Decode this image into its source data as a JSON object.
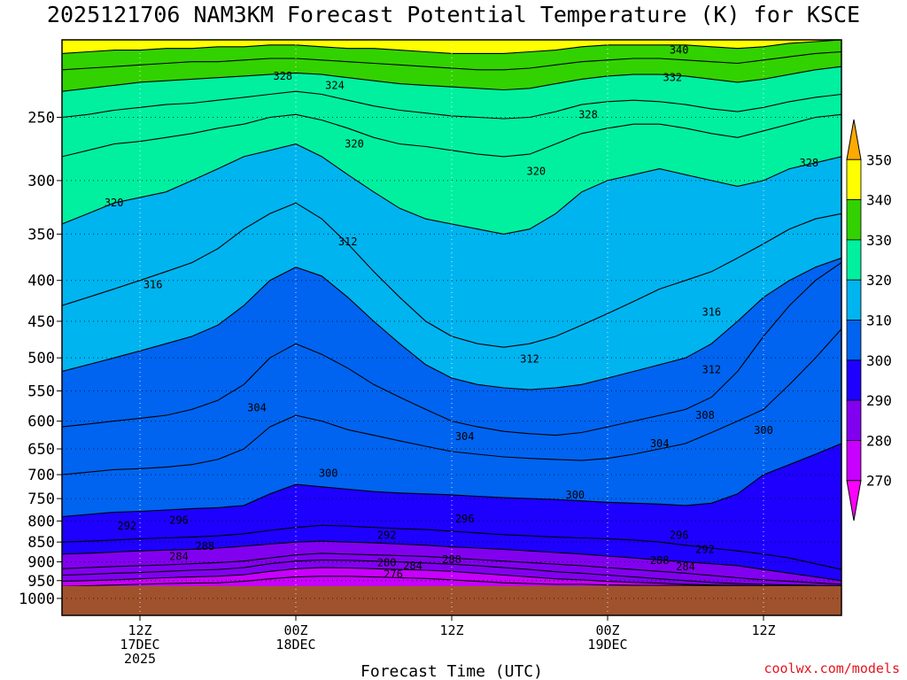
{
  "chart_data": {
    "type": "contour",
    "title": "2025121706 NAM3KM Forecast Potential Temperature (K) for KSCE",
    "xlabel": "Forecast Time (UTC)",
    "credit": "coolwx.com/models",
    "y_axis": {
      "label_unit": "hPa",
      "scale": "log",
      "range": [
        200,
        1050
      ],
      "ticks": [
        {
          "value": 250,
          "label": "250"
        },
        {
          "value": 300,
          "label": "300"
        },
        {
          "value": 350,
          "label": "350"
        },
        {
          "value": 400,
          "label": "400"
        },
        {
          "value": 450,
          "label": "450"
        },
        {
          "value": 500,
          "label": "500"
        },
        {
          "value": 550,
          "label": "550"
        },
        {
          "value": 600,
          "label": "600"
        },
        {
          "value": 650,
          "label": "650"
        },
        {
          "value": 700,
          "label": "700"
        },
        {
          "value": 750,
          "label": "750"
        },
        {
          "value": 800,
          "label": "800"
        },
        {
          "value": 850,
          "label": "850"
        },
        {
          "value": 900,
          "label": "900"
        },
        {
          "value": 950,
          "label": "950"
        },
        {
          "value": 1000,
          "label": "1000"
        }
      ]
    },
    "x_axis": {
      "unit": "forecast hour",
      "range": [
        0,
        60
      ],
      "ticks": [
        {
          "hour": 6,
          "lines": [
            "12Z",
            "17DEC",
            "2025"
          ]
        },
        {
          "hour": 18,
          "lines": [
            "00Z",
            "18DEC"
          ]
        },
        {
          "hour": 30,
          "lines": [
            "12Z"
          ]
        },
        {
          "hour": 42,
          "lines": [
            "00Z",
            "19DEC"
          ]
        },
        {
          "hour": 54,
          "lines": [
            "12Z"
          ]
        }
      ]
    },
    "colorbar": {
      "levels": [
        270,
        280,
        290,
        300,
        310,
        320,
        330,
        340,
        350
      ],
      "colors": [
        "#ff00ff",
        "#c800ff",
        "#8200f0",
        "#1e00ff",
        "#0064f0",
        "#00b4f0",
        "#00f0a0",
        "#32d200",
        "#ffff00",
        "#ffaa00"
      ],
      "labels": [
        "270",
        "280",
        "290",
        "300",
        "310",
        "320",
        "330",
        "340",
        "350"
      ]
    },
    "ground_color": "#a0522d",
    "ground_pressure_hpa": 965,
    "contour_interval_K": 4,
    "isentropes": [
      {
        "theta": 276,
        "p": [
          966,
          964,
          962,
          960,
          958,
          957,
          956,
          952,
          945,
          940,
          938,
          938,
          940,
          942,
          944,
          948,
          952,
          956,
          958,
          960,
          960,
          962,
          963,
          963,
          963,
          964,
          965,
          965,
          965,
          965,
          965
        ]
      },
      {
        "theta": 280,
        "p": [
          952,
          950,
          948,
          945,
          942,
          940,
          938,
          934,
          925,
          918,
          915,
          916,
          918,
          920,
          922,
          925,
          930,
          935,
          940,
          945,
          948,
          952,
          955,
          957,
          960,
          962,
          963,
          964,
          965,
          965,
          965
        ]
      },
      {
        "theta": 284,
        "p": [
          935,
          933,
          930,
          928,
          925,
          922,
          920,
          915,
          905,
          898,
          895,
          896,
          898,
          900,
          903,
          906,
          910,
          915,
          920,
          926,
          930,
          935,
          940,
          945,
          950,
          955,
          958,
          960,
          962,
          963,
          964
        ]
      },
      {
        "theta": 288,
        "p": [
          918,
          915,
          912,
          910,
          908,
          905,
          902,
          898,
          890,
          882,
          878,
          880,
          882,
          884,
          886,
          890,
          894,
          898,
          902,
          906,
          910,
          915,
          920,
          925,
          930,
          936,
          942,
          948,
          952,
          956,
          960
        ]
      },
      {
        "theta": 292,
        "p": [
          880,
          878,
          875,
          872,
          870,
          868,
          865,
          860,
          855,
          850,
          848,
          850,
          852,
          855,
          858,
          862,
          865,
          868,
          872,
          876,
          880,
          885,
          890,
          895,
          900,
          905,
          910,
          920,
          930,
          940,
          950
        ]
      },
      {
        "theta": 296,
        "p": [
          850,
          848,
          845,
          842,
          840,
          838,
          835,
          830,
          822,
          815,
          810,
          812,
          815,
          818,
          820,
          824,
          828,
          832,
          835,
          838,
          840,
          842,
          845,
          850,
          858,
          865,
          872,
          880,
          890,
          905,
          920
        ]
      },
      {
        "theta": 300,
        "p": [
          790,
          785,
          780,
          778,
          775,
          772,
          770,
          765,
          740,
          720,
          725,
          730,
          735,
          738,
          740,
          742,
          745,
          748,
          750,
          752,
          755,
          758,
          760,
          762,
          765,
          760,
          740,
          700,
          680,
          660,
          640
        ]
      },
      {
        "theta": 304,
        "p": [
          700,
          695,
          690,
          688,
          685,
          680,
          670,
          650,
          610,
          590,
          600,
          615,
          625,
          635,
          645,
          655,
          660,
          665,
          668,
          670,
          672,
          668,
          660,
          650,
          640,
          620,
          600,
          580,
          540,
          500,
          460
        ]
      },
      {
        "theta": 308,
        "p": [
          610,
          605,
          600,
          595,
          590,
          580,
          565,
          540,
          500,
          480,
          495,
          515,
          540,
          560,
          580,
          600,
          610,
          618,
          622,
          625,
          620,
          610,
          600,
          590,
          580,
          560,
          520,
          470,
          430,
          400,
          380
        ]
      },
      {
        "theta": 312,
        "p": [
          520,
          510,
          500,
          490,
          480,
          470,
          455,
          430,
          400,
          385,
          395,
          420,
          450,
          480,
          510,
          530,
          540,
          545,
          548,
          545,
          540,
          530,
          520,
          510,
          500,
          480,
          450,
          420,
          400,
          385,
          375
        ]
      },
      {
        "theta": 316,
        "p": [
          430,
          420,
          410,
          400,
          390,
          380,
          365,
          345,
          330,
          320,
          335,
          360,
          390,
          420,
          450,
          470,
          480,
          485,
          480,
          470,
          455,
          440,
          425,
          410,
          400,
          390,
          375,
          360,
          345,
          335,
          330
        ]
      },
      {
        "theta": 320,
        "p": [
          340,
          330,
          320,
          315,
          310,
          300,
          290,
          280,
          275,
          270,
          280,
          295,
          310,
          325,
          335,
          340,
          345,
          350,
          345,
          330,
          310,
          300,
          295,
          290,
          295,
          300,
          305,
          300,
          290,
          285,
          280
        ]
      },
      {
        "theta": 324,
        "p": [
          280,
          275,
          270,
          268,
          265,
          262,
          258,
          255,
          250,
          248,
          252,
          258,
          265,
          270,
          272,
          275,
          278,
          280,
          278,
          270,
          262,
          258,
          255,
          255,
          258,
          262,
          265,
          260,
          255,
          250,
          248
        ]
      },
      {
        "theta": 328,
        "p": [
          250,
          248,
          245,
          243,
          241,
          240,
          238,
          236,
          234,
          232,
          234,
          238,
          242,
          245,
          247,
          249,
          250,
          251,
          250,
          246,
          241,
          239,
          238,
          239,
          241,
          244,
          246,
          243,
          239,
          236,
          234
        ]
      },
      {
        "theta": 332,
        "p": [
          232,
          230,
          228,
          226,
          225,
          224,
          223,
          222,
          221,
          220,
          221,
          223,
          225,
          227,
          228,
          229,
          230,
          231,
          230,
          227,
          224,
          222,
          221,
          221,
          222,
          224,
          226,
          224,
          221,
          218,
          216
        ]
      },
      {
        "theta": 336,
        "p": [
          218,
          217,
          216,
          215,
          214,
          213,
          213,
          212,
          211,
          211,
          212,
          213,
          214,
          215,
          216,
          217,
          218,
          218,
          217,
          215,
          213,
          212,
          211,
          211,
          212,
          213,
          214,
          212,
          210,
          208,
          207
        ]
      },
      {
        "theta": 340,
        "p": [
          208,
          207,
          206,
          206,
          205,
          205,
          204,
          204,
          203,
          203,
          204,
          205,
          205,
          206,
          207,
          208,
          208,
          208,
          207,
          206,
          204,
          203,
          203,
          203,
          203,
          204,
          205,
          204,
          202,
          201,
          200
        ]
      }
    ],
    "contour_labels": [
      {
        "text": "340",
        "hour": 47.5,
        "p": 206
      },
      {
        "text": "332",
        "hour": 47,
        "p": 223
      },
      {
        "text": "328",
        "hour": 17,
        "p": 222
      },
      {
        "text": "324",
        "hour": 21,
        "p": 228
      },
      {
        "text": "328",
        "hour": 40.5,
        "p": 248
      },
      {
        "text": "328",
        "hour": 57.5,
        "p": 285
      },
      {
        "text": "320",
        "hour": 22.5,
        "p": 270
      },
      {
        "text": "320",
        "hour": 36.5,
        "p": 292
      },
      {
        "text": "320",
        "hour": 4,
        "p": 320
      },
      {
        "text": "312",
        "hour": 22,
        "p": 358
      },
      {
        "text": "316",
        "hour": 7,
        "p": 405
      },
      {
        "text": "316",
        "hour": 50,
        "p": 438
      },
      {
        "text": "312",
        "hour": 36,
        "p": 502
      },
      {
        "text": "312",
        "hour": 50,
        "p": 517
      },
      {
        "text": "304",
        "hour": 15,
        "p": 577
      },
      {
        "text": "308",
        "hour": 49.5,
        "p": 590
      },
      {
        "text": "300",
        "hour": 54,
        "p": 616
      },
      {
        "text": "304",
        "hour": 31,
        "p": 627
      },
      {
        "text": "304",
        "hour": 46,
        "p": 640
      },
      {
        "text": "300",
        "hour": 20.5,
        "p": 697
      },
      {
        "text": "300",
        "hour": 39.5,
        "p": 742
      },
      {
        "text": "296",
        "hour": 31,
        "p": 795
      },
      {
        "text": "292",
        "hour": 5,
        "p": 812
      },
      {
        "text": "296",
        "hour": 9,
        "p": 798
      },
      {
        "text": "296",
        "hour": 47.5,
        "p": 833
      },
      {
        "text": "292",
        "hour": 25,
        "p": 833
      },
      {
        "text": "292",
        "hour": 49.5,
        "p": 868
      },
      {
        "text": "288",
        "hour": 11,
        "p": 861
      },
      {
        "text": "288",
        "hour": 30,
        "p": 894
      },
      {
        "text": "288",
        "hour": 46,
        "p": 896
      },
      {
        "text": "284",
        "hour": 9,
        "p": 886
      },
      {
        "text": "284",
        "hour": 27,
        "p": 910
      },
      {
        "text": "284",
        "hour": 48,
        "p": 912
      },
      {
        "text": "280",
        "hour": 25,
        "p": 902
      },
      {
        "text": "276",
        "hour": 25.5,
        "p": 932
      }
    ]
  }
}
